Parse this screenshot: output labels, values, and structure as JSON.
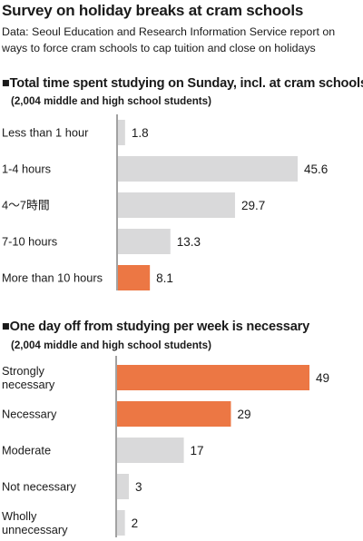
{
  "title": "Survey on holiday breaks at cram schools",
  "source": "Data: Seoul Education and Research Information Service report on ways to force cram schools to cap tuition and close on holidays",
  "colors": {
    "highlight": "#ec7744",
    "neutral": "#d9d9da",
    "axis": "#444444"
  },
  "chart_data": [
    {
      "type": "bar",
      "orientation": "horizontal",
      "title": "■Total time spent studying on Sunday, incl. at cram schools",
      "subtitle": "(2,004 middle and high school students)",
      "categories": [
        "Less than 1 hour",
        "1-4 hours",
        "4～7時間",
        "7-10 hours",
        "More than 10 hours"
      ],
      "values": [
        1.8,
        45.6,
        29.7,
        13.3,
        8.1
      ],
      "value_labels": [
        "1.8",
        "45.6",
        "29.7",
        "13.3",
        "8.1"
      ],
      "highlight": [
        false,
        false,
        false,
        false,
        true
      ],
      "xlim": [
        0,
        45.6
      ]
    },
    {
      "type": "bar",
      "orientation": "horizontal",
      "title": "■One day off from studying per week is necessary",
      "subtitle": "(2,004 middle and high school students)",
      "categories": [
        "Strongly necessary",
        "Necessary",
        "Moderate",
        "Not necessary",
        "Wholly unnecessary"
      ],
      "category_lines": [
        [
          "Strongly",
          "necessary"
        ],
        [
          "Necessary"
        ],
        [
          "Moderate"
        ],
        [
          "Not necessary"
        ],
        [
          "Wholly",
          "unnecessary"
        ]
      ],
      "values": [
        49,
        29,
        17,
        3,
        2
      ],
      "value_labels": [
        "49",
        "29",
        "17",
        "3",
        "2"
      ],
      "highlight": [
        true,
        true,
        false,
        false,
        false
      ],
      "xlim": [
        0,
        49
      ]
    }
  ]
}
